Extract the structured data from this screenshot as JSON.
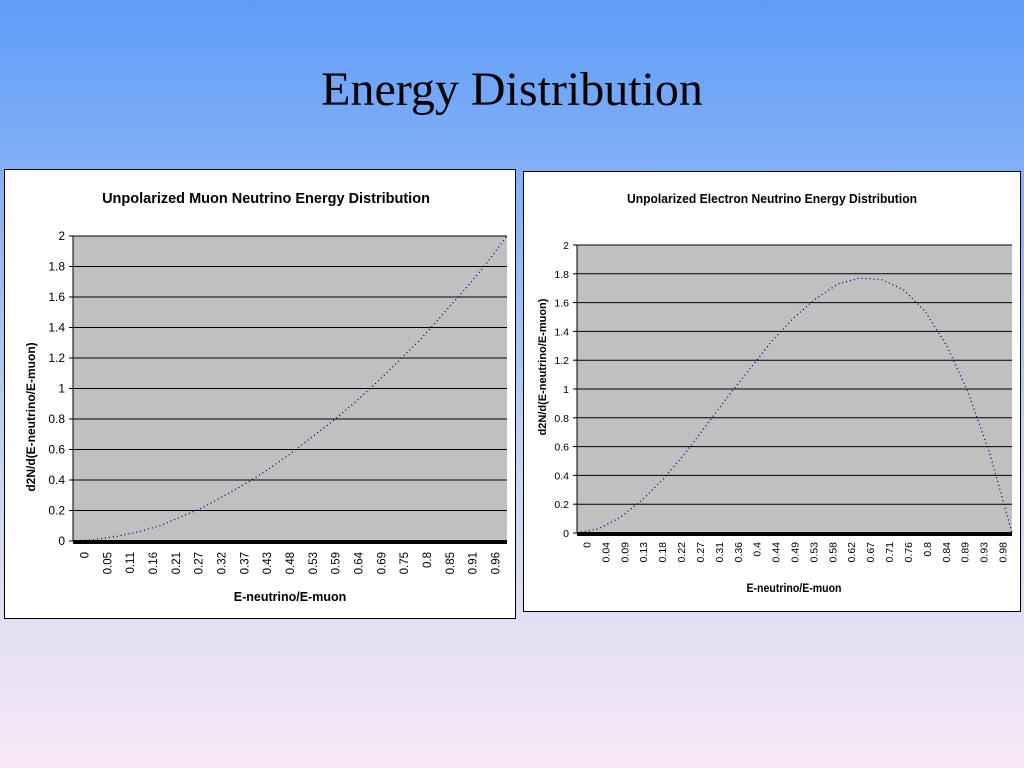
{
  "slide": {
    "title": "Energy Distribution"
  },
  "colors": {
    "plot_bg": "#c0c0c0",
    "line": "#000080",
    "grid": "#000000"
  },
  "chart_data": [
    {
      "type": "line",
      "title": "Unpolarized Muon Neutrino Energy Distribution",
      "xlabel": "E-neutrino/E-muon",
      "ylabel": "d2N/d(E-neutrino/E-muon)",
      "ylim": [
        0,
        2
      ],
      "yticks": [
        "0",
        "0.2",
        "0.4",
        "0.6",
        "0.8",
        "1",
        "1.2",
        "1.4",
        "1.6",
        "1.8",
        "2"
      ],
      "xticks": [
        "0",
        "0.05",
        "0.11",
        "0.16",
        "0.21",
        "0.27",
        "0.32",
        "0.37",
        "0.43",
        "0.48",
        "0.53",
        "0.59",
        "0.64",
        "0.69",
        "0.75",
        "0.8",
        "0.85",
        "0.91",
        "0.96"
      ],
      "xlim": [
        0,
        1
      ],
      "grid": true,
      "legend": "none",
      "series": [
        {
          "x": [
            0,
            0.05,
            0.1,
            0.15,
            0.2,
            0.25,
            0.3,
            0.35,
            0.4,
            0.45,
            0.5,
            0.55,
            0.6,
            0.65,
            0.7,
            0.75,
            0.8,
            0.85,
            0.9,
            0.95,
            1
          ],
          "values": [
            0,
            0.01,
            0.03,
            0.06,
            0.1,
            0.16,
            0.22,
            0.3,
            0.38,
            0.47,
            0.57,
            0.68,
            0.79,
            0.91,
            1.04,
            1.18,
            1.32,
            1.48,
            1.64,
            1.81,
            2
          ]
        }
      ]
    },
    {
      "type": "line",
      "title": "Unpolarized Electron Neutrino Energy Distribution",
      "xlabel": "E-neutrino/E-muon",
      "ylabel": "d2N/d(E-neutrino/E-muon)",
      "ylim": [
        0,
        2
      ],
      "yticks": [
        "0",
        "0.2",
        "0.4",
        "0.6",
        "0.8",
        "1",
        "1.2",
        "1.4",
        "1.6",
        "1.8",
        "2"
      ],
      "xticks": [
        "0",
        "0.04",
        "0.09",
        "0.13",
        "0.18",
        "0.22",
        "0.27",
        "0.31",
        "0.36",
        "0.4",
        "0.44",
        "0.49",
        "0.53",
        "0.58",
        "0.62",
        "0.67",
        "0.71",
        "0.76",
        "0.8",
        "0.84",
        "0.89",
        "0.93",
        "0.98"
      ],
      "xlim": [
        0,
        1
      ],
      "grid": true,
      "legend": "none",
      "series": [
        {
          "x": [
            0,
            0.05,
            0.1,
            0.15,
            0.2,
            0.25,
            0.3,
            0.35,
            0.4,
            0.45,
            0.5,
            0.55,
            0.6,
            0.65,
            0.7,
            0.75,
            0.8,
            0.85,
            0.9,
            0.95,
            1
          ],
          "values": [
            0,
            0.03,
            0.11,
            0.23,
            0.38,
            0.56,
            0.76,
            0.96,
            1.15,
            1.34,
            1.5,
            1.63,
            1.73,
            1.77,
            1.76,
            1.69,
            1.54,
            1.3,
            0.97,
            0.54,
            0
          ]
        }
      ]
    }
  ]
}
